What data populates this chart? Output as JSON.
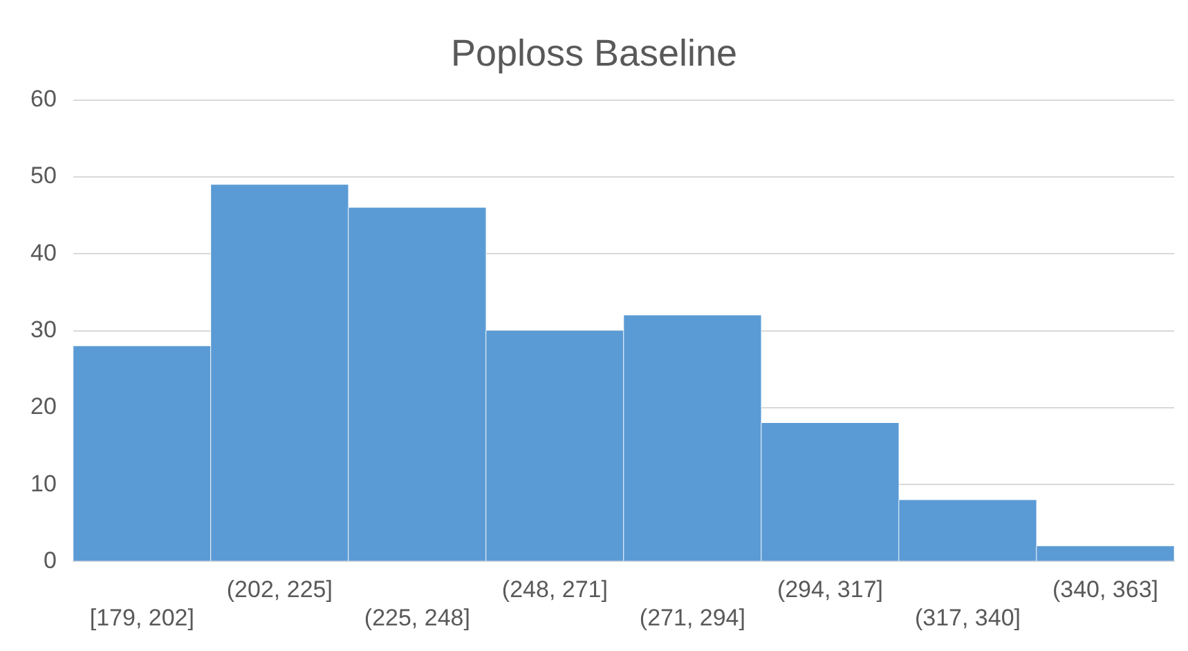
{
  "chart_data": {
    "type": "bar",
    "title": "Poploss Baseline",
    "categories": [
      "[179, 202]",
      "(202, 225]",
      "(225, 248]",
      "(248, 271]",
      "(271, 294]",
      "(294, 317]",
      "(317, 340]",
      "(340, 363]"
    ],
    "values": [
      28,
      49,
      46,
      30,
      32,
      18,
      8,
      2
    ],
    "color": "#5b9bd5",
    "ylim": [
      0,
      60
    ],
    "yticks": [
      0,
      10,
      20,
      30,
      40,
      50,
      60
    ],
    "grid": "y",
    "legend": false
  }
}
